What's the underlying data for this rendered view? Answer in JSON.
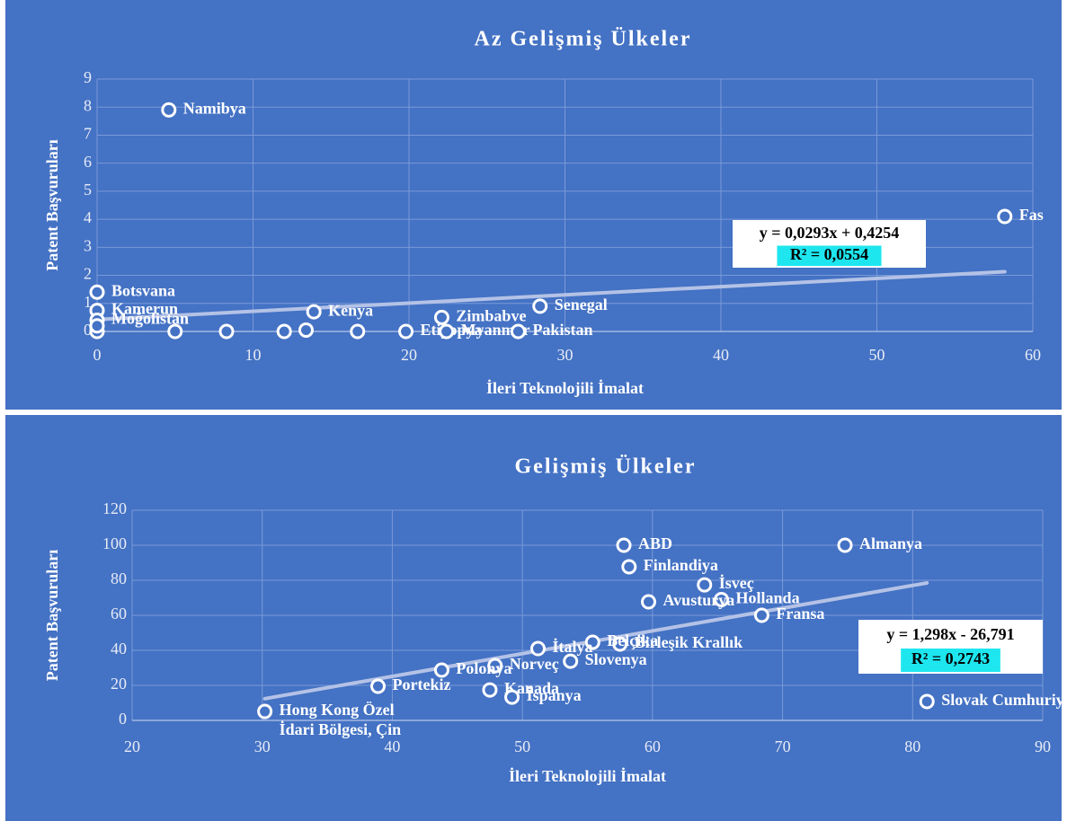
{
  "chart_data": [
    {
      "type": "scatter",
      "title": "Az Gelişmiş Ülkeler",
      "x_label": "İleri Teknolojili İmalat",
      "y_label": "Patent Başvuruları",
      "x": [
        4.6,
        58.2,
        0,
        0,
        0,
        13.9,
        22.1,
        28.4,
        19.8,
        22.4,
        27,
        0,
        0,
        5,
        8.3,
        12,
        13.4,
        16.7
      ],
      "values": [
        7.9,
        4.1,
        1.4,
        0.75,
        0.4,
        0.7,
        0.5,
        0.9,
        0,
        0,
        0,
        0,
        0.2,
        0,
        0,
        0,
        0.05,
        0
      ],
      "labels": [
        "Namibya",
        "Fas",
        "Botsvana",
        "Kamerun",
        "Moğolistan",
        "Kenya",
        "Zimbabve",
        "Senegal",
        "Etiyopya",
        "Myanmar",
        "Pakistan",
        null,
        null,
        null,
        null,
        null,
        null,
        null
      ],
      "xlim": [
        0,
        60
      ],
      "xticks": [
        0,
        10,
        20,
        30,
        40,
        50,
        60
      ],
      "ylim": [
        0,
        9
      ],
      "yticks": [
        0,
        1,
        2,
        3,
        4,
        5,
        6,
        7,
        8,
        9
      ],
      "grid": true,
      "trendline": {
        "slope": 0.0293,
        "intercept": 0.4254,
        "equation": "y = 0,0293x + 0,4254",
        "r2": "R² = 0,0554"
      }
    },
    {
      "type": "scatter",
      "title": "Gelişmiş Ülkeler",
      "x_label": "İleri Teknolojili İmalat",
      "y_label": "Patent Başvuruları",
      "x": [
        57.8,
        74.8,
        58.2,
        64,
        65.3,
        59.7,
        68.4,
        57.5,
        55.4,
        51.2,
        53.7,
        47.9,
        43.8,
        38.9,
        47.5,
        49.2,
        30.2,
        81.1
      ],
      "values": [
        100,
        100,
        87.7,
        77.4,
        69,
        67.7,
        60,
        43.6,
        44.6,
        41,
        33.8,
        31.3,
        28.7,
        19.5,
        17.4,
        13.3,
        5.1,
        10.8
      ],
      "labels": [
        "ABD",
        "Almanya",
        "Finlandiya",
        "İsveç",
        "Hollanda",
        "Avusturya",
        "Fransa",
        "Birleşik Krallık",
        "Belçika",
        "İtalya",
        "Slovenya",
        "Norveç",
        "Polonya",
        "Portekiz",
        "Kanada",
        "İspanya",
        "Hong Kong Özel\nİdari Bölgesi, Çin",
        "Slovak Cumhuriyeti"
      ],
      "xlim": [
        20,
        90
      ],
      "xticks": [
        20,
        30,
        40,
        50,
        60,
        70,
        80,
        90
      ],
      "ylim": [
        0,
        120
      ],
      "yticks": [
        0,
        20,
        40,
        60,
        80,
        100,
        120
      ],
      "grid": true,
      "trendline": {
        "slope": 1.298,
        "intercept": -26.791,
        "equation": "y = 1,298x - 26,791",
        "r2": "R² = 0,2743"
      }
    }
  ]
}
